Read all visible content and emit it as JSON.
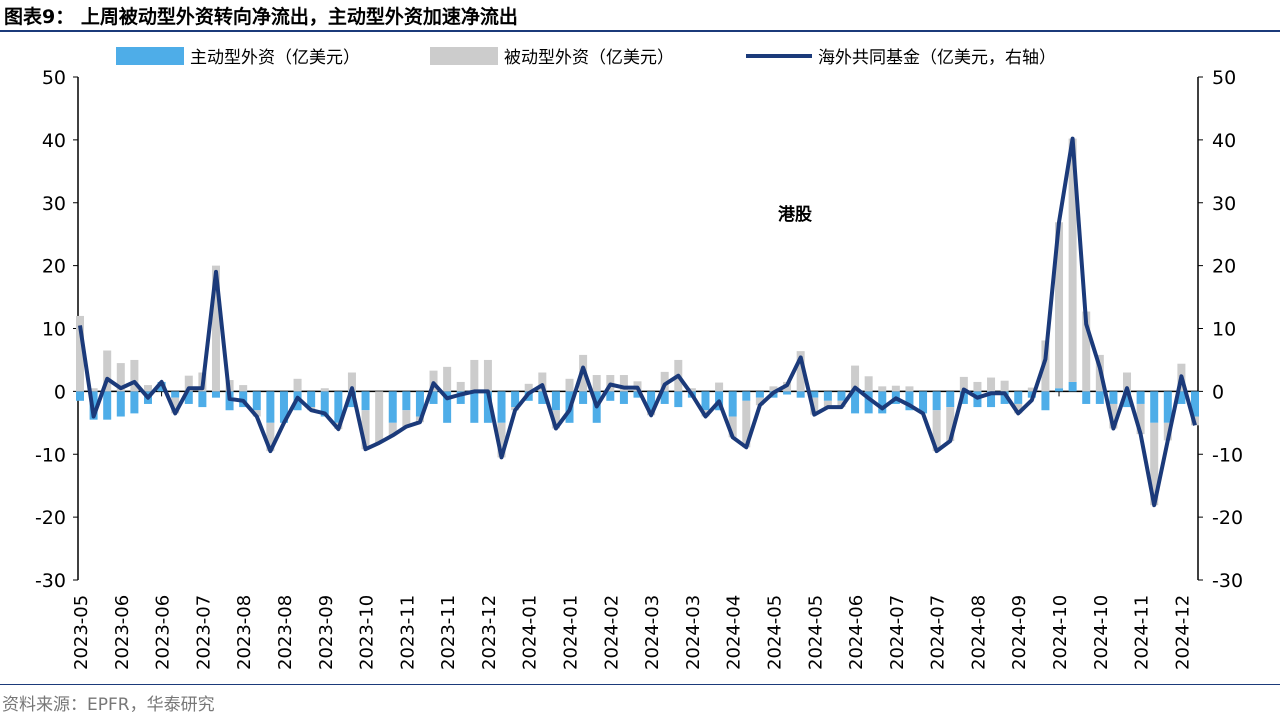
{
  "title": "图表9： 上周被动型外资转向净流出，主动型外资加速净流出",
  "source": "资料来源：EPFR，华泰研究",
  "colors": {
    "active": "#4EADE8",
    "passive": "#CCCCCC",
    "fund": "#1B3A7A",
    "rule": "#1B3A7A"
  },
  "chart_data": {
    "type": "bar+line",
    "annotation": "港股",
    "legend": [
      "主动型外资（亿美元）",
      "被动型外资（亿美元）",
      "海外共同基金（亿美元，右轴）"
    ],
    "legend_position": "top",
    "ylim": [
      -30,
      50
    ],
    "y2lim": [
      -30,
      50
    ],
    "yticks": [
      50,
      40,
      30,
      20,
      10,
      0,
      -10,
      -20,
      -30
    ],
    "xtick_labels": [
      "2023-05",
      "2023-06",
      "2023-06",
      "2023-07",
      "2023-08",
      "2023-08",
      "2023-09",
      "2023-10",
      "2023-11",
      "2023-11",
      "2023-12",
      "2024-01",
      "2024-01",
      "2024-02",
      "2024-03",
      "2024-03",
      "2024-04",
      "2024-05",
      "2024-05",
      "2024-06",
      "2024-07",
      "2024-07",
      "2024-08",
      "2024-09",
      "2024-10",
      "2024-10",
      "2024-11",
      "2024-12"
    ],
    "series": [
      {
        "name": "主动型外资（亿美元）",
        "type": "bar",
        "values": [
          -1.5,
          -4.5,
          -4.5,
          -4,
          -3.5,
          -2,
          1.5,
          -1,
          -2,
          -2.5,
          -1,
          -3,
          -2.5,
          -3,
          -5,
          -5,
          -3,
          -2.5,
          -4,
          -5,
          -2.5,
          -3,
          0,
          -5,
          -3,
          -4,
          -2,
          -5,
          -2,
          -5,
          -5,
          -5,
          -2.5,
          -1.5,
          -2,
          -3,
          -5,
          -2,
          -5,
          -1.5,
          -2,
          -1,
          -3,
          -2,
          -2.5,
          -1,
          -3,
          -3,
          -4,
          -1.5,
          -1,
          -1,
          -0.5,
          -1,
          -1,
          -1.5,
          -1.5,
          -3.5,
          -3.5,
          -3.5,
          -2,
          -3,
          -3.5,
          -3,
          -2.5,
          -2,
          -2.5,
          -2.5,
          -2,
          -2,
          -1,
          -3,
          0.5,
          1.5,
          -2,
          -2,
          -2,
          -2.5,
          -2,
          -5,
          -5,
          -2,
          -4
        ]
      },
      {
        "name": "被动型外资（亿美元）",
        "type": "bar",
        "values": [
          12,
          0.5,
          6.5,
          4.5,
          5,
          1,
          0,
          -2.5,
          2.5,
          3,
          20,
          1.8,
          1,
          -1,
          -4.5,
          0,
          2,
          -0.5,
          0.5,
          -1,
          3,
          -6.2,
          -8.2,
          -2,
          -2.6,
          -0.9,
          3.3,
          3.9,
          1.5,
          5,
          5,
          -5.5,
          -0.5,
          1.2,
          3,
          -2.9,
          2,
          5.8,
          2.6,
          2.6,
          2.6,
          1.6,
          -0.8,
          3.1,
          5,
          0.5,
          -1,
          1.4,
          -3.3,
          -7.4,
          -1.2,
          0.8,
          1.5,
          6.4,
          -2.7,
          -1,
          -1,
          4.1,
          2.4,
          0.8,
          0.9,
          0.8,
          0,
          -6.5,
          -5.4,
          2.3,
          1.5,
          2.2,
          1.7,
          -1.5,
          0.6,
          8.1,
          26.4,
          38.7,
          12.7,
          5.8,
          -3.9,
          3,
          -4.8,
          -13.1,
          -2.8,
          4.4,
          -1.4
        ]
      },
      {
        "name": "海外共同基金（亿美元，右轴）",
        "type": "line",
        "axis": "right",
        "values": [
          10.5,
          -4,
          2,
          0.5,
          1.5,
          -1,
          1.5,
          -3.5,
          0.5,
          0.5,
          19,
          -1.2,
          -1.5,
          -4,
          -9.5,
          -5,
          -1,
          -3,
          -3.5,
          -6,
          0.5,
          -9.2,
          -8.2,
          -7,
          -5.6,
          -4.9,
          1.3,
          -1.1,
          -0.5,
          0,
          0,
          -10.5,
          -3,
          -0.3,
          1,
          -5.9,
          -3,
          3.8,
          -2.4,
          1.1,
          0.6,
          0.6,
          -3.8,
          1.1,
          2.5,
          -0.5,
          -4,
          -1.6,
          -7.3,
          -8.9,
          -2.2,
          -0.2,
          1,
          5.4,
          -3.7,
          -2.5,
          -2.5,
          0.6,
          -1.1,
          -2.7,
          -1.1,
          -2.2,
          -3.5,
          -9.5,
          -7.9,
          0.3,
          -1,
          -0.3,
          -0.3,
          -3.5,
          -1.4,
          5.1,
          26.9,
          40.2,
          10.7,
          3.8,
          -5.9,
          0.5,
          -6.8,
          -18.1,
          -7.8,
          2.4,
          -5.4
        ]
      }
    ]
  }
}
